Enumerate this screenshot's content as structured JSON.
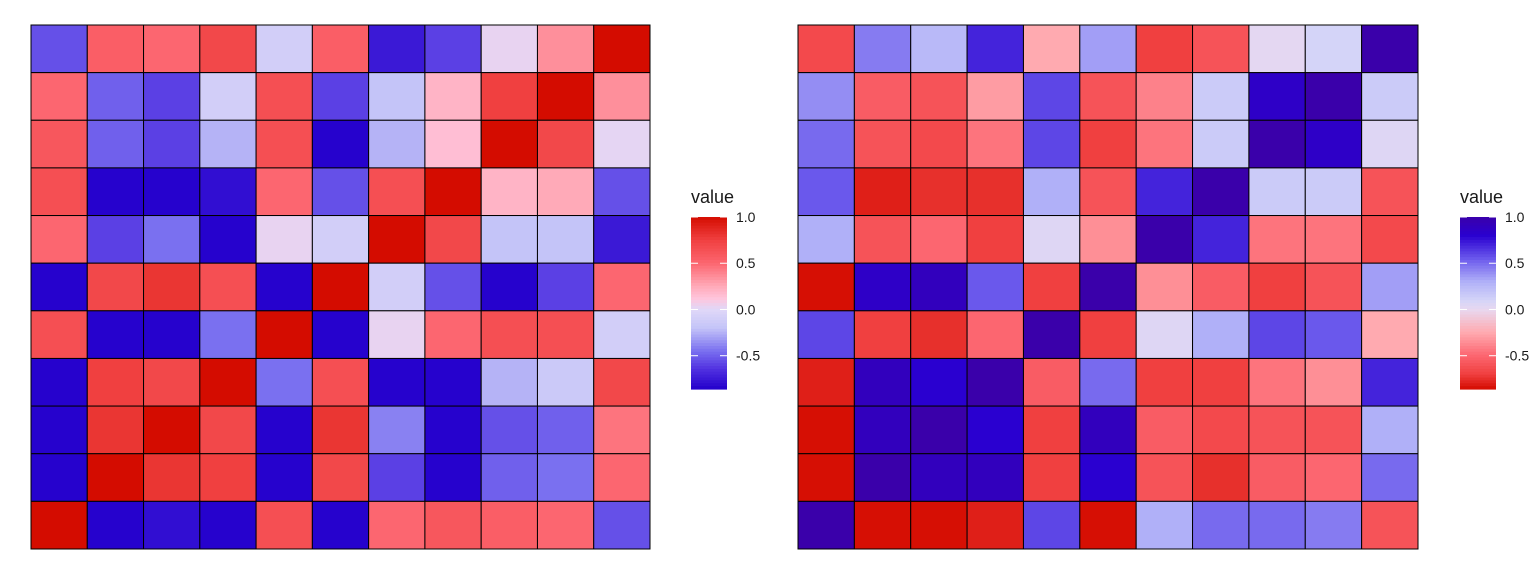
{
  "chart_data": [
    {
      "type": "heatmap",
      "legend": {
        "title": "value",
        "ticks": [
          "1.0",
          "0.5",
          "0.0",
          "-0.5"
        ],
        "tick_values": [
          1.0,
          0.5,
          0.0,
          -0.5
        ],
        "placement": "right"
      },
      "range": [
        -0.86,
        1.0
      ],
      "colors": {
        "high": "#d40c00",
        "mid": "#e0d8f8",
        "low": "#2400cc"
      },
      "values": [
        [
          -0.55,
          0.55,
          0.5,
          0.7,
          -0.1,
          0.55,
          -0.75,
          -0.6,
          0.03,
          0.35,
          1.0
        ],
        [
          0.5,
          -0.5,
          -0.6,
          -0.1,
          0.65,
          -0.6,
          -0.2,
          0.2,
          0.75,
          1.0,
          0.35
        ],
        [
          0.6,
          -0.5,
          -0.6,
          -0.25,
          0.65,
          -0.85,
          -0.25,
          0.15,
          1.0,
          0.7,
          0.02
        ],
        [
          0.65,
          -0.85,
          -0.85,
          -0.8,
          0.5,
          -0.55,
          0.65,
          1.0,
          0.2,
          0.25,
          -0.55
        ],
        [
          0.5,
          -0.6,
          -0.45,
          -0.85,
          0.03,
          -0.1,
          1.0,
          0.7,
          -0.2,
          -0.2,
          -0.75
        ],
        [
          -0.85,
          0.7,
          0.8,
          0.65,
          -0.85,
          1.0,
          -0.1,
          -0.55,
          -0.85,
          -0.6,
          0.5
        ],
        [
          0.65,
          -0.85,
          -0.85,
          -0.45,
          1.0,
          -0.85,
          0.03,
          0.5,
          0.65,
          0.65,
          -0.1
        ],
        [
          -0.85,
          0.75,
          0.7,
          1.0,
          -0.45,
          0.65,
          -0.85,
          -0.85,
          -0.25,
          -0.15,
          0.7
        ],
        [
          -0.85,
          0.8,
          1.0,
          0.7,
          -0.85,
          0.8,
          -0.4,
          -0.85,
          -0.55,
          -0.5,
          0.45
        ],
        [
          -0.85,
          1.0,
          0.8,
          0.75,
          -0.85,
          0.7,
          -0.6,
          -0.85,
          -0.5,
          -0.45,
          0.5
        ],
        [
          1.0,
          -0.85,
          -0.8,
          -0.85,
          0.65,
          -0.85,
          0.5,
          0.6,
          0.55,
          0.5,
          -0.55
        ]
      ]
    },
    {
      "type": "heatmap",
      "legend": {
        "title": "value",
        "ticks": [
          "1.0",
          "0.5",
          "0.0",
          "-0.5"
        ],
        "tick_values": [
          1.0,
          0.5,
          0.0,
          -0.5
        ],
        "placement": "right"
      },
      "range": [
        -0.86,
        1.0
      ],
      "colors": {
        "high": "#3a00aa",
        "mid": "#e8d8f0",
        "low": "#d40c00"
      },
      "values": [
        [
          -0.65,
          0.45,
          0.25,
          0.7,
          -0.25,
          0.35,
          -0.7,
          -0.6,
          0.02,
          0.1,
          1.0
        ],
        [
          0.4,
          -0.55,
          -0.6,
          -0.3,
          0.6,
          -0.6,
          -0.4,
          0.15,
          0.85,
          1.0,
          0.15
        ],
        [
          0.5,
          -0.6,
          -0.65,
          -0.45,
          0.6,
          -0.7,
          -0.45,
          0.15,
          1.0,
          0.85,
          0.05
        ],
        [
          0.55,
          -0.8,
          -0.75,
          -0.75,
          0.3,
          -0.6,
          0.7,
          1.0,
          0.15,
          0.15,
          -0.6
        ],
        [
          0.3,
          -0.6,
          -0.5,
          -0.7,
          0.05,
          -0.35,
          1.0,
          0.7,
          -0.45,
          -0.45,
          -0.65
        ],
        [
          -0.85,
          0.85,
          0.9,
          0.55,
          -0.7,
          1.0,
          -0.35,
          -0.55,
          -0.7,
          -0.6,
          0.35
        ],
        [
          0.6,
          -0.7,
          -0.75,
          -0.5,
          1.0,
          -0.7,
          0.05,
          0.3,
          0.6,
          0.55,
          -0.25
        ],
        [
          -0.8,
          0.9,
          0.8,
          1.0,
          -0.55,
          0.5,
          -0.7,
          -0.7,
          -0.45,
          -0.35,
          0.7
        ],
        [
          -0.85,
          0.9,
          1.0,
          0.8,
          -0.7,
          0.9,
          -0.55,
          -0.65,
          -0.6,
          -0.6,
          0.3
        ],
        [
          -0.85,
          1.0,
          0.9,
          0.9,
          -0.7,
          0.8,
          -0.6,
          -0.75,
          -0.55,
          -0.5,
          0.5
        ],
        [
          1.0,
          -0.85,
          -0.85,
          -0.8,
          0.6,
          -0.85,
          0.3,
          0.5,
          0.5,
          0.45,
          -0.6
        ]
      ]
    }
  ]
}
